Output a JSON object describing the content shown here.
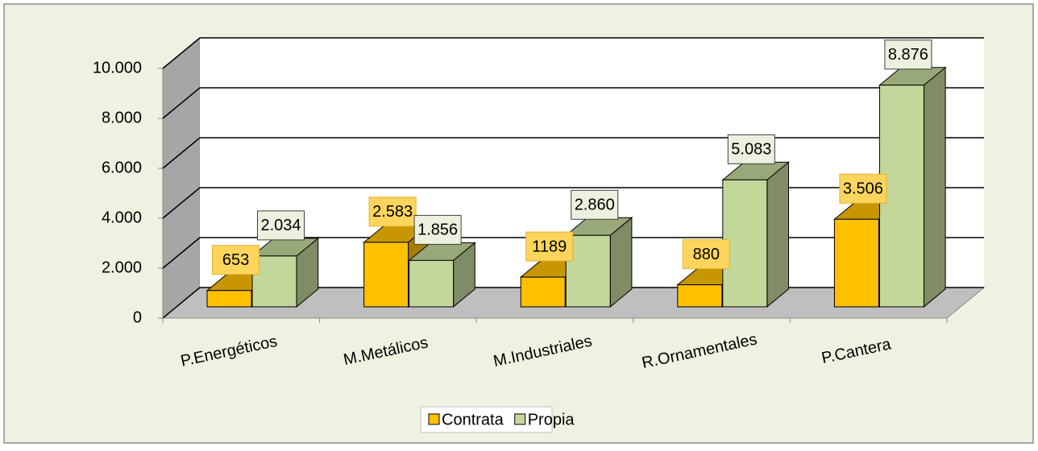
{
  "chart_data": {
    "type": "bar3d",
    "categories": [
      "P.Energéticos",
      "M.Metálicos",
      "M.Industriales",
      "R.Ornamentales",
      "P.Cantera"
    ],
    "series": [
      {
        "name": "Contrata",
        "color": "#ffc000",
        "values": [
          653,
          2583,
          1189,
          880,
          3506
        ],
        "value_labels": [
          "653",
          "2.583",
          "1189",
          "880",
          "3.506"
        ]
      },
      {
        "name": "Propia",
        "color": "#c4d79b",
        "values": [
          2034,
          1856,
          2860,
          5083,
          8876
        ],
        "value_labels": [
          "2.034",
          "1.856",
          "2.860",
          "5.083",
          "8.876"
        ]
      }
    ],
    "ylim": [
      0,
      10000
    ],
    "yticks": [
      0,
      {
        "value": 2000,
        "label": "2.000"
      },
      {
        "value": 4000,
        "label": "4.000"
      },
      {
        "value": 6000,
        "label": "6.000"
      },
      {
        "value": 8000,
        "label": "8.000"
      },
      {
        "value": 10000,
        "label": "10.000"
      }
    ],
    "grid": true,
    "legend": "bottom"
  }
}
